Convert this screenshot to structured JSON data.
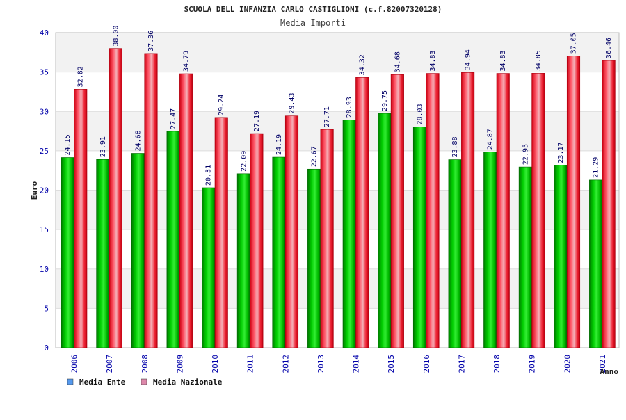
{
  "chart_data": {
    "type": "bar",
    "title": "SCUOLA DELL INFANZIA CARLO CASTIGLIONI (c.f.82007320128)",
    "subtitle": "Media Importi",
    "xlabel": "Anno",
    "ylabel": "Euro",
    "ylim": [
      0,
      40
    ],
    "yticks": [
      0,
      5,
      10,
      15,
      20,
      25,
      30,
      35,
      40
    ],
    "grid": true,
    "legend_position": "bottom-left",
    "categories": [
      "2006",
      "2007",
      "2008",
      "2009",
      "2010",
      "2011",
      "2012",
      "2013",
      "2014",
      "2015",
      "2016",
      "2017",
      "2018",
      "2019",
      "2020",
      "2021"
    ],
    "series": [
      {
        "name": "Media Ente",
        "legend_color": "#5599ee",
        "color": "#00bb00",
        "values": [
          24.15,
          23.91,
          24.68,
          27.47,
          20.31,
          22.09,
          24.19,
          22.67,
          28.93,
          29.75,
          28.03,
          23.88,
          24.87,
          22.95,
          23.17,
          21.29
        ]
      },
      {
        "name": "Media Nazionale",
        "legend_color": "#dd88aa",
        "color": "#ee1122",
        "values": [
          32.82,
          38.0,
          37.36,
          34.79,
          29.24,
          27.19,
          29.43,
          27.71,
          34.32,
          34.68,
          34.83,
          34.94,
          34.83,
          34.85,
          37.05,
          36.46
        ]
      }
    ]
  }
}
